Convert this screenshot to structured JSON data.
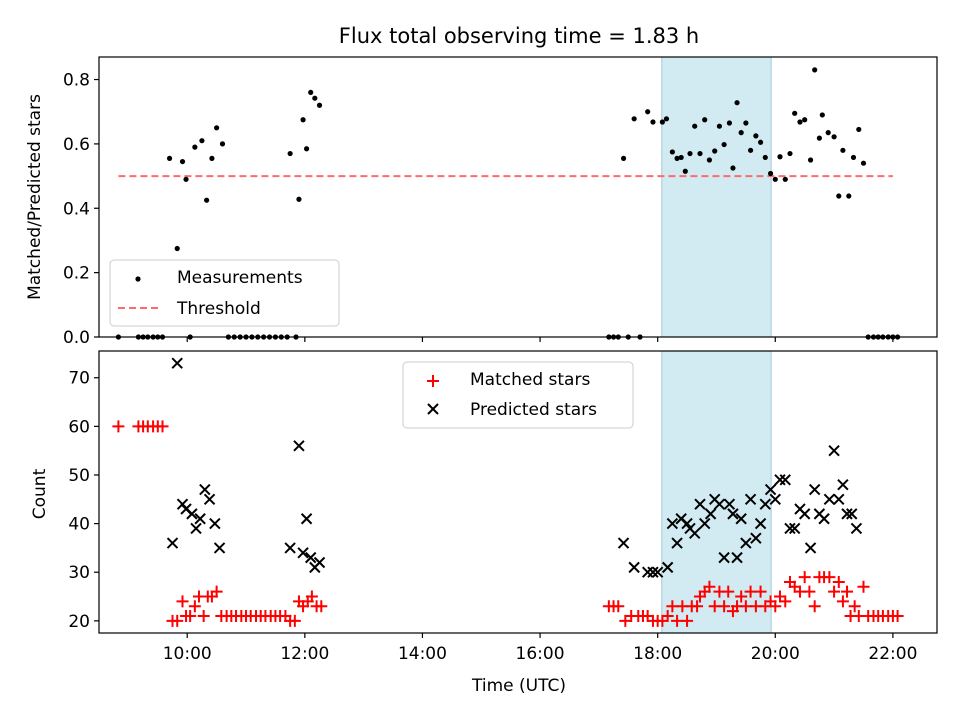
{
  "title": "Flux total observing time = 1.83 h",
  "colors": {
    "measurement": "#000000",
    "threshold": "#ff6b6b",
    "matched": "#ff0000",
    "predicted": "#000000",
    "highlight": "#add8e6"
  },
  "chart_data": [
    {
      "type": "scatter",
      "ylabel": "Matched/Predicted stars",
      "xlim": [
        8.5,
        22.75
      ],
      "ylim": [
        0,
        0.87
      ],
      "yticks": [
        0.0,
        0.2,
        0.4,
        0.6,
        0.8
      ],
      "ytick_labels": [
        "0.0",
        "0.2",
        "0.4",
        "0.6",
        "0.8"
      ],
      "grid": false,
      "legend_position": "lower-left",
      "highlight_span": [
        18.07,
        19.93
      ],
      "threshold": {
        "name": "Threshold",
        "value": 0.5,
        "x_range": [
          8.83,
          22.0
        ],
        "style": "dashed"
      },
      "series": [
        {
          "name": "Measurements",
          "marker": "dot",
          "points": [
            [
              8.83,
              0.0
            ],
            [
              9.17,
              0.0
            ],
            [
              9.25,
              0.0
            ],
            [
              9.33,
              0.0
            ],
            [
              9.42,
              0.0
            ],
            [
              9.5,
              0.0
            ],
            [
              9.58,
              0.0
            ],
            [
              9.7,
              0.555
            ],
            [
              9.83,
              0.275
            ],
            [
              9.92,
              0.545
            ],
            [
              9.98,
              0.49
            ],
            [
              10.05,
              0.0
            ],
            [
              10.13,
              0.59
            ],
            [
              10.25,
              0.61
            ],
            [
              10.33,
              0.425
            ],
            [
              10.42,
              0.555
            ],
            [
              10.5,
              0.65
            ],
            [
              10.6,
              0.6
            ],
            [
              10.7,
              0.0
            ],
            [
              10.8,
              0.0
            ],
            [
              10.9,
              0.0
            ],
            [
              11.0,
              0.0
            ],
            [
              11.1,
              0.0
            ],
            [
              11.2,
              0.0
            ],
            [
              11.3,
              0.0
            ],
            [
              11.4,
              0.0
            ],
            [
              11.5,
              0.0
            ],
            [
              11.6,
              0.0
            ],
            [
              11.7,
              0.0
            ],
            [
              11.75,
              0.57
            ],
            [
              11.85,
              0.0
            ],
            [
              11.9,
              0.428
            ],
            [
              11.97,
              0.675
            ],
            [
              12.03,
              0.585
            ],
            [
              12.1,
              0.76
            ],
            [
              12.17,
              0.742
            ],
            [
              12.25,
              0.72
            ],
            [
              17.17,
              0.0
            ],
            [
              17.25,
              0.0
            ],
            [
              17.33,
              0.0
            ],
            [
              17.42,
              0.555
            ],
            [
              17.5,
              0.0
            ],
            [
              17.6,
              0.678
            ],
            [
              17.7,
              0.0
            ],
            [
              17.83,
              0.7
            ],
            [
              17.92,
              0.668
            ],
            [
              18.08,
              0.668
            ],
            [
              18.15,
              0.678
            ],
            [
              18.25,
              0.575
            ],
            [
              18.33,
              0.555
            ],
            [
              18.4,
              0.558
            ],
            [
              18.47,
              0.515
            ],
            [
              18.55,
              0.57
            ],
            [
              18.63,
              0.655
            ],
            [
              18.72,
              0.57
            ],
            [
              18.8,
              0.675
            ],
            [
              18.88,
              0.55
            ],
            [
              18.97,
              0.578
            ],
            [
              19.05,
              0.655
            ],
            [
              19.13,
              0.598
            ],
            [
              19.22,
              0.665
            ],
            [
              19.28,
              0.525
            ],
            [
              19.35,
              0.728
            ],
            [
              19.42,
              0.635
            ],
            [
              19.5,
              0.665
            ],
            [
              19.58,
              0.58
            ],
            [
              19.67,
              0.625
            ],
            [
              19.75,
              0.605
            ],
            [
              19.83,
              0.558
            ],
            [
              19.92,
              0.508
            ],
            [
              20.0,
              0.49
            ],
            [
              20.08,
              0.56
            ],
            [
              20.17,
              0.49
            ],
            [
              20.25,
              0.57
            ],
            [
              20.33,
              0.695
            ],
            [
              20.42,
              0.668
            ],
            [
              20.5,
              0.675
            ],
            [
              20.6,
              0.55
            ],
            [
              20.67,
              0.83
            ],
            [
              20.75,
              0.618
            ],
            [
              20.8,
              0.69
            ],
            [
              20.9,
              0.635
            ],
            [
              21.0,
              0.622
            ],
            [
              21.08,
              0.438
            ],
            [
              21.15,
              0.58
            ],
            [
              21.25,
              0.438
            ],
            [
              21.33,
              0.558
            ],
            [
              21.42,
              0.645
            ],
            [
              21.5,
              0.54
            ],
            [
              21.58,
              0.0
            ],
            [
              21.67,
              0.0
            ],
            [
              21.75,
              0.0
            ],
            [
              21.83,
              0.0
            ],
            [
              21.92,
              0.0
            ],
            [
              22.0,
              0.0
            ],
            [
              22.08,
              0.0
            ]
          ]
        }
      ],
      "legend": [
        "Measurements",
        "Threshold"
      ]
    },
    {
      "type": "scatter",
      "xlabel": "Time (UTC)",
      "ylabel": "Count",
      "xlim": [
        8.5,
        22.75
      ],
      "ylim": [
        17.5,
        75.5
      ],
      "xticks": [
        10,
        12,
        14,
        16,
        18,
        20,
        22
      ],
      "xtick_labels": [
        "10:00",
        "12:00",
        "14:00",
        "16:00",
        "18:00",
        "20:00",
        "22:00"
      ],
      "yticks": [
        20,
        30,
        40,
        50,
        60,
        70
      ],
      "ytick_labels": [
        "20",
        "30",
        "40",
        "50",
        "60",
        "70"
      ],
      "grid": false,
      "legend_position": "upper-center",
      "highlight_span": [
        18.07,
        19.93
      ],
      "series": [
        {
          "name": "Matched stars",
          "marker": "plus",
          "points": [
            [
              8.83,
              60
            ],
            [
              9.17,
              60
            ],
            [
              9.25,
              60
            ],
            [
              9.33,
              60
            ],
            [
              9.42,
              60
            ],
            [
              9.5,
              60
            ],
            [
              9.58,
              60
            ],
            [
              9.75,
              20
            ],
            [
              9.83,
              20
            ],
            [
              9.92,
              24
            ],
            [
              9.98,
              21
            ],
            [
              10.05,
              21
            ],
            [
              10.13,
              23
            ],
            [
              10.2,
              25
            ],
            [
              10.28,
              21
            ],
            [
              10.35,
              25
            ],
            [
              10.42,
              25
            ],
            [
              10.5,
              26
            ],
            [
              10.58,
              21
            ],
            [
              10.67,
              21
            ],
            [
              10.75,
              21
            ],
            [
              10.83,
              21
            ],
            [
              10.92,
              21
            ],
            [
              11.0,
              21
            ],
            [
              11.08,
              21
            ],
            [
              11.17,
              21
            ],
            [
              11.25,
              21
            ],
            [
              11.33,
              21
            ],
            [
              11.42,
              21
            ],
            [
              11.5,
              21
            ],
            [
              11.58,
              21
            ],
            [
              11.67,
              21
            ],
            [
              11.75,
              20
            ],
            [
              11.83,
              20
            ],
            [
              11.9,
              24
            ],
            [
              11.97,
              23
            ],
            [
              12.05,
              24
            ],
            [
              12.12,
              25
            ],
            [
              12.2,
              23
            ],
            [
              12.28,
              23
            ],
            [
              17.17,
              23
            ],
            [
              17.25,
              23
            ],
            [
              17.33,
              23
            ],
            [
              17.45,
              20
            ],
            [
              17.55,
              21
            ],
            [
              17.67,
              21
            ],
            [
              17.75,
              21
            ],
            [
              17.83,
              21
            ],
            [
              17.92,
              20
            ],
            [
              18.0,
              20
            ],
            [
              18.08,
              20
            ],
            [
              18.17,
              21
            ],
            [
              18.25,
              23
            ],
            [
              18.33,
              20
            ],
            [
              18.42,
              23
            ],
            [
              18.5,
              20
            ],
            [
              18.58,
              23
            ],
            [
              18.67,
              23
            ],
            [
              18.72,
              25
            ],
            [
              18.8,
              26
            ],
            [
              18.88,
              27
            ],
            [
              18.97,
              23
            ],
            [
              19.05,
              26
            ],
            [
              19.13,
              23
            ],
            [
              19.2,
              26
            ],
            [
              19.28,
              22
            ],
            [
              19.35,
              23
            ],
            [
              19.42,
              25
            ],
            [
              19.5,
              23
            ],
            [
              19.58,
              26
            ],
            [
              19.67,
              23
            ],
            [
              19.75,
              26
            ],
            [
              19.83,
              23
            ],
            [
              19.92,
              24
            ],
            [
              20.0,
              23
            ],
            [
              20.08,
              25
            ],
            [
              20.17,
              24
            ],
            [
              20.25,
              28
            ],
            [
              20.33,
              27
            ],
            [
              20.42,
              26
            ],
            [
              20.5,
              29
            ],
            [
              20.58,
              26
            ],
            [
              20.67,
              23
            ],
            [
              20.75,
              29
            ],
            [
              20.83,
              29
            ],
            [
              20.92,
              29
            ],
            [
              21.0,
              26
            ],
            [
              21.08,
              28
            ],
            [
              21.15,
              24
            ],
            [
              21.22,
              26
            ],
            [
              21.28,
              21
            ],
            [
              21.35,
              23
            ],
            [
              21.42,
              21
            ],
            [
              21.5,
              27
            ],
            [
              21.58,
              21
            ],
            [
              21.67,
              21
            ],
            [
              21.75,
              21
            ],
            [
              21.83,
              21
            ],
            [
              21.92,
              21
            ],
            [
              22.0,
              21
            ],
            [
              22.08,
              21
            ]
          ]
        },
        {
          "name": "Predicted stars",
          "marker": "x",
          "points": [
            [
              9.75,
              36
            ],
            [
              9.83,
              73
            ],
            [
              9.92,
              44
            ],
            [
              9.98,
              43
            ],
            [
              10.08,
              42
            ],
            [
              10.15,
              39
            ],
            [
              10.22,
              41
            ],
            [
              10.3,
              47
            ],
            [
              10.38,
              45
            ],
            [
              10.47,
              40
            ],
            [
              10.55,
              35
            ],
            [
              11.75,
              35
            ],
            [
              11.9,
              56
            ],
            [
              11.97,
              34
            ],
            [
              12.03,
              41
            ],
            [
              12.1,
              33
            ],
            [
              12.17,
              31
            ],
            [
              12.25,
              32
            ],
            [
              17.42,
              36
            ],
            [
              17.6,
              31
            ],
            [
              17.83,
              30
            ],
            [
              17.92,
              30
            ],
            [
              18.0,
              30
            ],
            [
              18.17,
              31
            ],
            [
              18.25,
              40
            ],
            [
              18.33,
              36
            ],
            [
              18.4,
              41
            ],
            [
              18.5,
              40
            ],
            [
              18.55,
              39
            ],
            [
              18.63,
              38
            ],
            [
              18.72,
              44
            ],
            [
              18.8,
              40
            ],
            [
              18.9,
              42
            ],
            [
              18.97,
              45
            ],
            [
              19.05,
              44
            ],
            [
              19.13,
              33
            ],
            [
              19.22,
              44
            ],
            [
              19.28,
              42
            ],
            [
              19.35,
              33
            ],
            [
              19.42,
              41
            ],
            [
              19.5,
              36
            ],
            [
              19.58,
              45
            ],
            [
              19.67,
              37
            ],
            [
              19.75,
              40
            ],
            [
              19.83,
              44
            ],
            [
              19.92,
              47
            ],
            [
              20.0,
              45
            ],
            [
              20.08,
              49
            ],
            [
              20.17,
              49
            ],
            [
              20.25,
              39
            ],
            [
              20.33,
              39
            ],
            [
              20.42,
              43
            ],
            [
              20.5,
              42
            ],
            [
              20.6,
              35
            ],
            [
              20.67,
              47
            ],
            [
              20.75,
              42
            ],
            [
              20.83,
              41
            ],
            [
              20.92,
              45
            ],
            [
              21.0,
              55
            ],
            [
              21.08,
              45
            ],
            [
              21.15,
              48
            ],
            [
              21.22,
              42
            ],
            [
              21.3,
              42
            ],
            [
              21.38,
              39
            ]
          ]
        }
      ],
      "legend": [
        "Matched stars",
        "Predicted stars"
      ]
    }
  ]
}
